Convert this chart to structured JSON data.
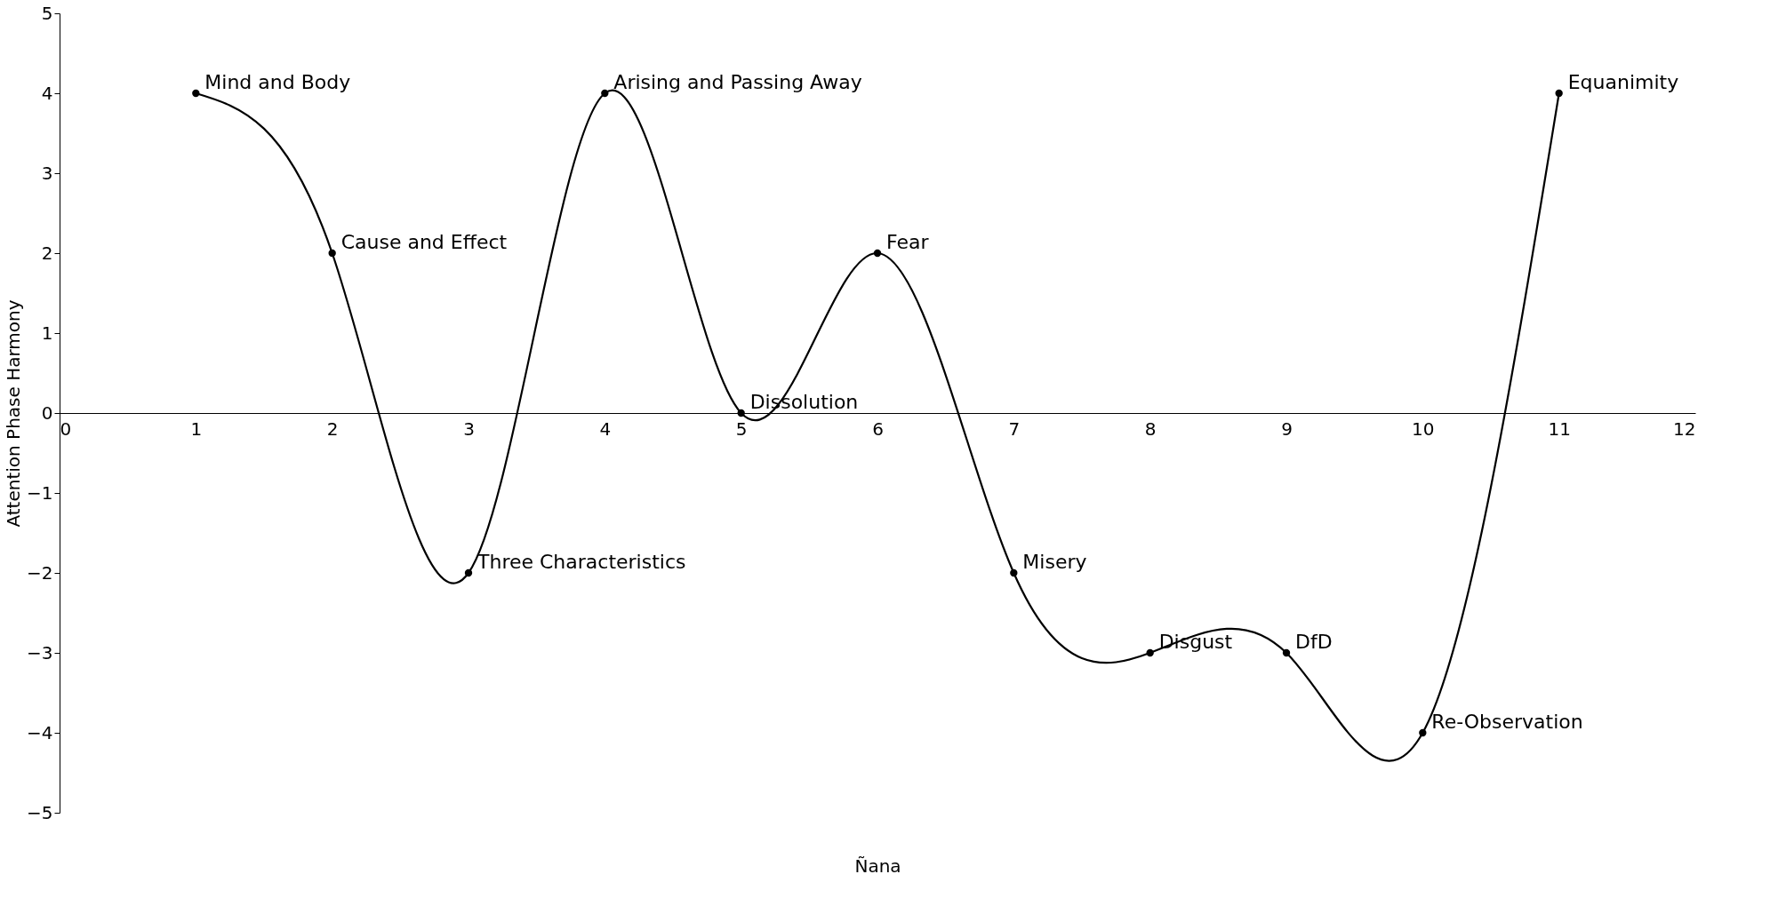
{
  "chart_data": {
    "type": "line",
    "xlabel": "Ñana",
    "ylabel": "Attention Phase Harmony",
    "x": [
      1,
      2,
      3,
      4,
      5,
      6,
      7,
      8,
      9,
      10,
      11
    ],
    "series": [
      {
        "color": "#000000",
        "values": [
          4,
          2,
          -2,
          4,
          0,
          2,
          -2,
          -3,
          -3,
          -4,
          4
        ]
      }
    ],
    "annotations": [
      {
        "text": "Mind and Body",
        "x": 1,
        "y": 4
      },
      {
        "text": "Cause and Effect",
        "x": 2,
        "y": 2
      },
      {
        "text": "Three Characteristics",
        "x": 3,
        "y": -2
      },
      {
        "text": "Arising and Passing Away",
        "x": 4,
        "y": 4
      },
      {
        "text": "Dissolution",
        "x": 5,
        "y": 0
      },
      {
        "text": "Fear",
        "x": 6,
        "y": 2
      },
      {
        "text": "Misery",
        "x": 7,
        "y": -2
      },
      {
        "text": "Disgust",
        "x": 8,
        "y": -3
      },
      {
        "text": "DfD",
        "x": 9,
        "y": -3
      },
      {
        "text": "Re-Observation",
        "x": 10,
        "y": -4
      },
      {
        "text": "Equanimity",
        "x": 11,
        "y": 4
      }
    ],
    "xlim": [
      0,
      12
    ],
    "ylim": [
      -5,
      5
    ],
    "xticks": [
      0,
      1,
      2,
      3,
      4,
      5,
      6,
      7,
      8,
      9,
      10,
      11,
      12
    ],
    "yticks": [
      -5,
      -4,
      -3,
      -2,
      -1,
      0,
      1,
      2,
      3,
      4,
      5
    ],
    "marker": "circle",
    "line_style": "solid",
    "grid": false
  }
}
